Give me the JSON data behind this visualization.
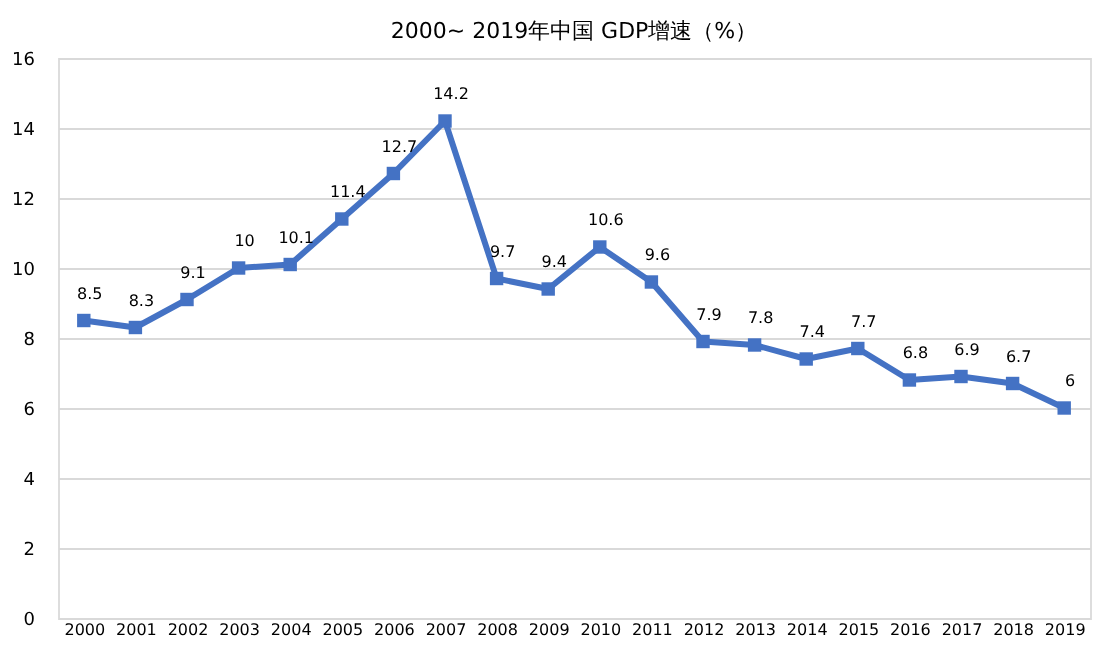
{
  "chart_data": {
    "type": "line",
    "title": "2000~ 2019年中国 GDP增速（%）",
    "categories": [
      "2000",
      "2001",
      "2002",
      "2003",
      "2004",
      "2005",
      "2006",
      "2007",
      "2008",
      "2009",
      "2010",
      "2011",
      "2012",
      "2013",
      "2014",
      "2015",
      "2016",
      "2017",
      "2018",
      "2019"
    ],
    "series": [
      {
        "color": "#4472c4",
        "values": [
          8.5,
          8.3,
          9.1,
          10,
          10.1,
          11.4,
          12.7,
          14.2,
          9.7,
          9.4,
          10.6,
          9.6,
          7.9,
          7.8,
          7.4,
          7.7,
          6.8,
          6.9,
          6.7,
          6
        ]
      }
    ],
    "ylim": [
      0,
      16
    ],
    "yticks": [
      0,
      2,
      4,
      6,
      8,
      10,
      12,
      14,
      16
    ],
    "grid": "y",
    "marker": "square",
    "line_style": "solid",
    "data_labels": true
  }
}
